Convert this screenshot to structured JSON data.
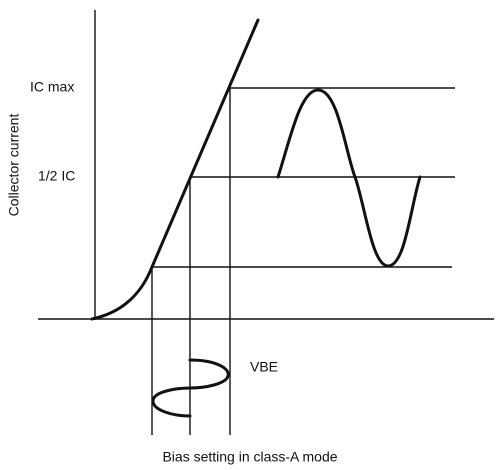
{
  "labels": {
    "ic_max": "IC max",
    "half_ic": "1/2 IC",
    "y_axis": "Collector current",
    "input": "VBE"
  },
  "caption": "Bias setting in class-A mode"
}
